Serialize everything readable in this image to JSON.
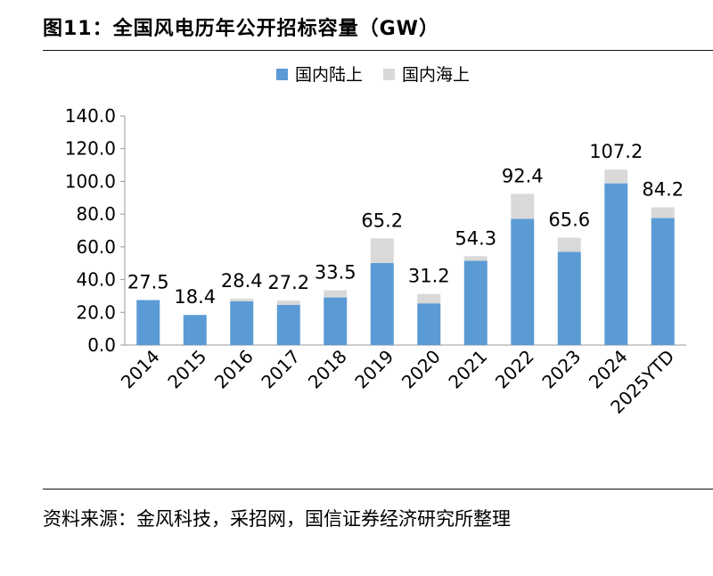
{
  "title": "图11：全国风电历年公开招标容量（GW）",
  "source": "资料来源：金风科技，采招网，国信证券经济研究所整理",
  "chart_data": {
    "type": "bar",
    "stacked": true,
    "categories": [
      "2014",
      "2015",
      "2016",
      "2017",
      "2018",
      "2019",
      "2020",
      "2021",
      "2022",
      "2023",
      "2024",
      "2025YTD"
    ],
    "series": [
      {
        "name": "国内陆上",
        "color": "#5b9bd5",
        "values": [
          27.5,
          18.4,
          26.8,
          24.6,
          29.1,
          50.1,
          25.5,
          51.5,
          77.1,
          57.0,
          98.8,
          77.6
        ]
      },
      {
        "name": "国内海上",
        "color": "#d9d9d9",
        "values": [
          0.0,
          0.0,
          1.6,
          2.6,
          4.4,
          15.1,
          5.7,
          2.8,
          15.3,
          8.6,
          8.4,
          6.6
        ]
      }
    ],
    "totals": [
      "27.5",
      "18.4",
      "28.4",
      "27.2",
      "33.5",
      "65.2",
      "31.2",
      "54.3",
      "92.4",
      "65.6",
      "107.2",
      "84.2"
    ],
    "y_ticks": [
      "0.0",
      "20.0",
      "40.0",
      "60.0",
      "80.0",
      "100.0",
      "120.0",
      "140.0"
    ],
    "ylim": [
      0,
      140
    ],
    "legend_position": "top-center",
    "grid": false
  }
}
